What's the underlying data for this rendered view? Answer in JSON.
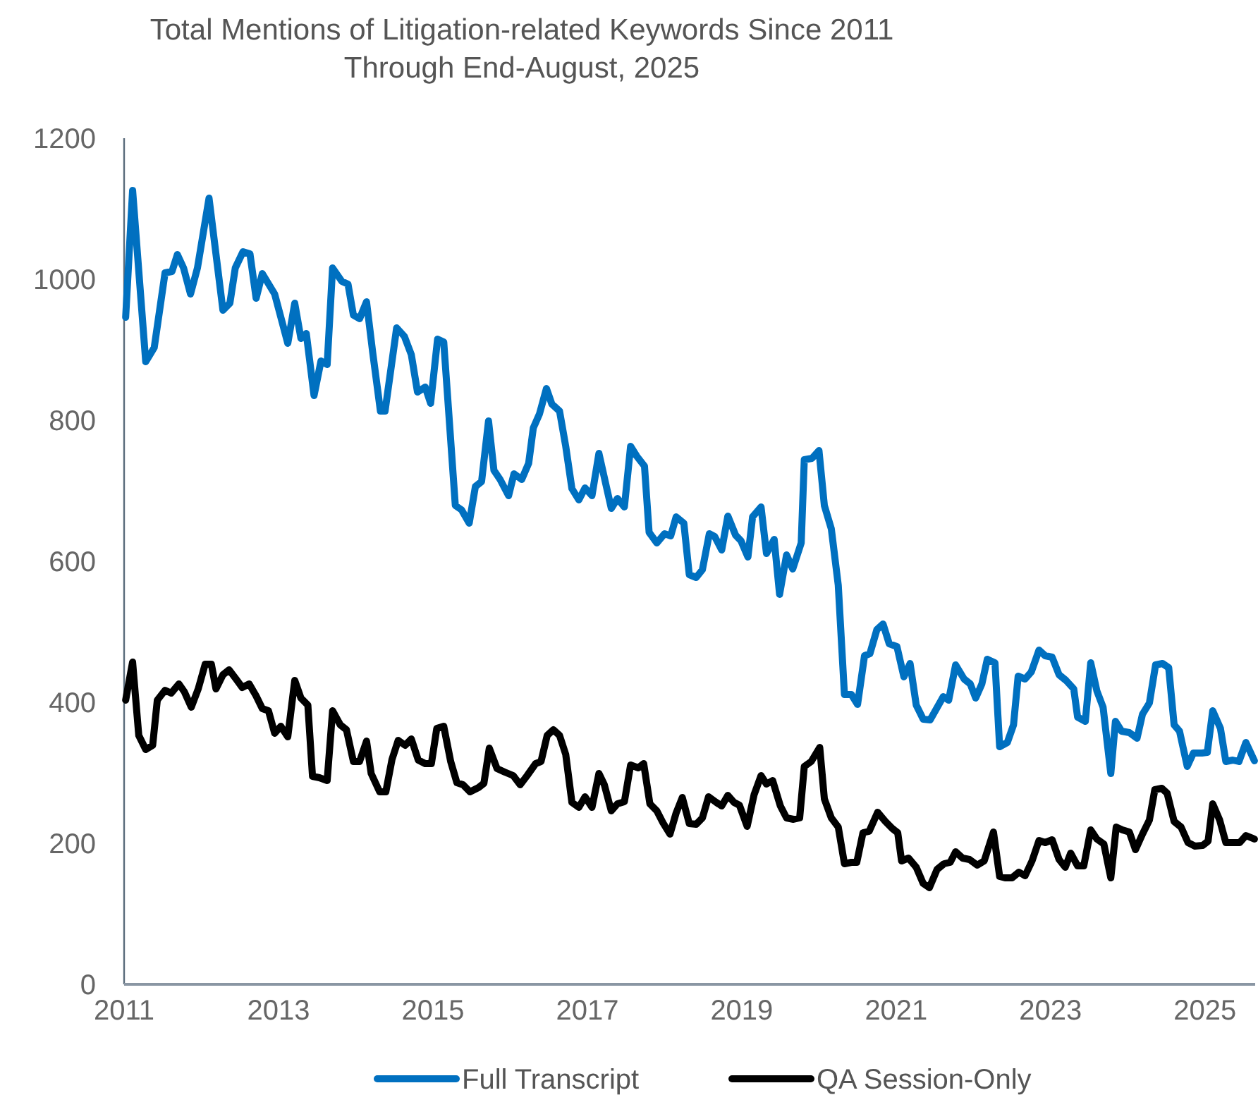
{
  "chart_data": {
    "type": "line",
    "title": "Total Mentions of Litigation-related Keywords Since 2011 Through End-August, 2025",
    "xlim": [
      2011,
      2025.65
    ],
    "xticks": [
      2011,
      2013,
      2015,
      2017,
      2019,
      2021,
      2023,
      2025
    ],
    "ylim": [
      0,
      1200
    ],
    "yticks": [
      0,
      200,
      400,
      600,
      800,
      1000,
      1200
    ],
    "grid": false,
    "legend": "bottom",
    "line_style": "solid",
    "marker": "none",
    "series": [
      {
        "name": "Full Transcript",
        "color": "#0070c0",
        "x": [
          2011.02,
          2011.11,
          2011.28,
          2011.39,
          2011.53,
          2011.62,
          2011.69,
          2011.77,
          2011.86,
          2011.95,
          2012.1,
          2012.28,
          2012.37,
          2012.44,
          2012.54,
          2012.63,
          2012.71,
          2012.79,
          2012.95,
          2013.12,
          2013.21,
          2013.29,
          2013.36,
          2013.46,
          2013.55,
          2013.63,
          2013.7,
          2013.82,
          2013.9,
          2013.97,
          2014.05,
          2014.14,
          2014.22,
          2014.32,
          2014.38,
          2014.53,
          2014.63,
          2014.72,
          2014.8,
          2014.9,
          2014.97,
          2015.06,
          2015.14,
          2015.29,
          2015.37,
          2015.47,
          2015.55,
          2015.63,
          2015.72,
          2015.79,
          2015.87,
          2015.98,
          2016.05,
          2016.15,
          2016.24,
          2016.3,
          2016.38,
          2016.47,
          2016.54,
          2016.64,
          2016.72,
          2016.8,
          2016.89,
          2016.97,
          2017.06,
          2017.15,
          2017.24,
          2017.31,
          2017.39,
          2017.48,
          2017.56,
          2017.64,
          2017.74,
          2017.8,
          2017.9,
          2018.0,
          2018.08,
          2018.15,
          2018.25,
          2018.32,
          2018.41,
          2018.49,
          2018.58,
          2018.65,
          2018.74,
          2018.82,
          2018.92,
          2018.99,
          2019.08,
          2019.14,
          2019.25,
          2019.32,
          2019.42,
          2019.49,
          2019.58,
          2019.66,
          2019.77,
          2019.81,
          2019.91,
          2020.0,
          2020.07,
          2020.16,
          2020.25,
          2020.33,
          2020.42,
          2020.5,
          2020.59,
          2020.66,
          2020.75,
          2020.83,
          2020.91,
          2021.01,
          2021.1,
          2021.18,
          2021.26,
          2021.35,
          2021.44,
          2021.61,
          2021.68,
          2021.77,
          2021.88,
          2021.96,
          2022.03,
          2022.11,
          2022.18,
          2022.28,
          2022.34,
          2022.44,
          2022.52,
          2022.58,
          2022.67,
          2022.75,
          2022.85,
          2022.93,
          2023.02,
          2023.11,
          2023.2,
          2023.3,
          2023.35,
          2023.45,
          2023.52,
          2023.6,
          2023.68,
          2023.78,
          2023.84,
          2023.92,
          2024.02,
          2024.12,
          2024.19,
          2024.28,
          2024.36,
          2024.45,
          2024.53,
          2024.6,
          2024.67,
          2024.77,
          2024.85,
          2024.96,
          2025.03,
          2025.1,
          2025.2,
          2025.27,
          2025.36,
          2025.44,
          2025.53,
          2025.64
        ],
        "values": [
          946,
          1126,
          883,
          903,
          1009,
          1011,
          1035,
          1016,
          979,
          1016,
          1115,
          956,
          966,
          1016,
          1039,
          1036,
          973,
          1008,
          979,
          909,
          966,
          916,
          923,
          835,
          884,
          879,
          1016,
          997,
          993,
          949,
          944,
          968,
          896,
          813,
          813,
          931,
          919,
          893,
          840,
          847,
          824,
          915,
          911,
          679,
          673,
          654,
          706,
          713,
          799,
          729,
          716,
          693,
          724,
          716,
          739,
          789,
          809,
          845,
          823,
          813,
          763,
          703,
          687,
          704,
          693,
          753,
          709,
          675,
          689,
          677,
          763,
          749,
          735,
          641,
          626,
          639,
          636,
          663,
          654,
          581,
          577,
          588,
          639,
          635,
          616,
          664,
          637,
          629,
          606,
          663,
          677,
          611,
          631,
          553,
          609,
          589,
          626,
          744,
          746,
          757,
          679,
          646,
          566,
          411,
          411,
          397,
          466,
          469,
          503,
          511,
          483,
          479,
          436,
          455,
          396,
          376,
          375,
          408,
          403,
          453,
          433,
          426,
          406,
          426,
          461,
          456,
          337,
          343,
          368,
          437,
          433,
          443,
          474,
          466,
          464,
          439,
          431,
          419,
          379,
          373,
          456,
          416,
          393,
          299,
          373,
          359,
          357,
          349,
          383,
          399,
          453,
          455,
          449,
          368,
          359,
          309,
          328,
          328,
          329,
          388,
          363,
          316,
          318,
          316,
          343,
          317
        ]
      },
      {
        "name": "QA Session-Only",
        "color": "#000000",
        "x": [
          2011.02,
          2011.11,
          2011.19,
          2011.28,
          2011.37,
          2011.43,
          2011.53,
          2011.61,
          2011.71,
          2011.78,
          2011.87,
          2011.96,
          2012.05,
          2012.13,
          2012.19,
          2012.28,
          2012.36,
          2012.45,
          2012.53,
          2012.62,
          2012.71,
          2012.79,
          2012.87,
          2012.95,
          2013.03,
          2013.12,
          2013.21,
          2013.29,
          2013.38,
          2013.44,
          2013.53,
          2013.63,
          2013.7,
          2013.8,
          2013.88,
          2013.97,
          2014.05,
          2014.14,
          2014.2,
          2014.31,
          2014.39,
          2014.47,
          2014.55,
          2014.64,
          2014.72,
          2014.81,
          2014.9,
          2014.98,
          2015.05,
          2015.14,
          2015.23,
          2015.31,
          2015.39,
          2015.48,
          2015.59,
          2015.66,
          2015.73,
          2015.83,
          2015.93,
          2016.04,
          2016.13,
          2016.22,
          2016.33,
          2016.4,
          2016.48,
          2016.56,
          2016.64,
          2016.72,
          2016.8,
          2016.89,
          2016.97,
          2017.06,
          2017.15,
          2017.22,
          2017.31,
          2017.39,
          2017.48,
          2017.56,
          2017.66,
          2017.73,
          2017.81,
          2017.9,
          2017.98,
          2018.07,
          2018.15,
          2018.23,
          2018.32,
          2018.41,
          2018.49,
          2018.57,
          2018.67,
          2018.74,
          2018.82,
          2018.9,
          2018.97,
          2019.07,
          2019.16,
          2019.25,
          2019.32,
          2019.4,
          2019.5,
          2019.58,
          2019.67,
          2019.75,
          2019.81,
          2019.9,
          2020.01,
          2020.07,
          2020.16,
          2020.25,
          2020.33,
          2020.42,
          2020.49,
          2020.57,
          2020.65,
          2020.76,
          2020.86,
          2020.95,
          2021.02,
          2021.07,
          2021.16,
          2021.26,
          2021.35,
          2021.43,
          2021.53,
          2021.62,
          2021.7,
          2021.77,
          2021.86,
          2021.95,
          2022.05,
          2022.14,
          2022.26,
          2022.34,
          2022.41,
          2022.5,
          2022.59,
          2022.67,
          2022.76,
          2022.85,
          2022.93,
          2023.02,
          2023.11,
          2023.19,
          2023.26,
          2023.35,
          2023.43,
          2023.52,
          2023.6,
          2023.69,
          2023.78,
          2023.85,
          2023.93,
          2024.02,
          2024.1,
          2024.19,
          2024.28,
          2024.35,
          2024.44,
          2024.51,
          2024.6,
          2024.69,
          2024.78,
          2024.87,
          2024.97,
          2025.04,
          2025.1,
          2025.19,
          2025.27,
          2025.36,
          2025.45,
          2025.53,
          2025.64
        ],
        "values": [
          403,
          457,
          353,
          333,
          339,
          403,
          417,
          413,
          426,
          415,
          393,
          419,
          454,
          454,
          419,
          439,
          446,
          433,
          421,
          426,
          409,
          391,
          388,
          356,
          366,
          351,
          431,
          406,
          396,
          295,
          293,
          289,
          388,
          368,
          361,
          316,
          316,
          345,
          299,
          273,
          273,
          319,
          346,
          339,
          348,
          318,
          313,
          313,
          363,
          366,
          316,
          286,
          283,
          273,
          279,
          285,
          335,
          306,
          301,
          296,
          283,
          296,
          313,
          316,
          353,
          361,
          353,
          326,
          258,
          251,
          266,
          251,
          299,
          283,
          246,
          256,
          259,
          311,
          307,
          313,
          256,
          246,
          229,
          213,
          243,
          265,
          228,
          227,
          236,
          266,
          258,
          253,
          268,
          258,
          254,
          224,
          269,
          296,
          284,
          289,
          253,
          236,
          234,
          236,
          309,
          316,
          336,
          263,
          236,
          223,
          171,
          173,
          173,
          215,
          217,
          244,
          231,
          221,
          215,
          175,
          179,
          166,
          143,
          137,
          163,
          171,
          173,
          188,
          179,
          177,
          169,
          175,
          216,
          153,
          151,
          151,
          159,
          154,
          175,
          204,
          201,
          205,
          177,
          166,
          186,
          168,
          168,
          219,
          206,
          199,
          151,
          223,
          219,
          216,
          191,
          213,
          233,
          276,
          278,
          271,
          231,
          223,
          201,
          196,
          197,
          203,
          256,
          233,
          201,
          201,
          201,
          211,
          206
        ]
      }
    ]
  }
}
